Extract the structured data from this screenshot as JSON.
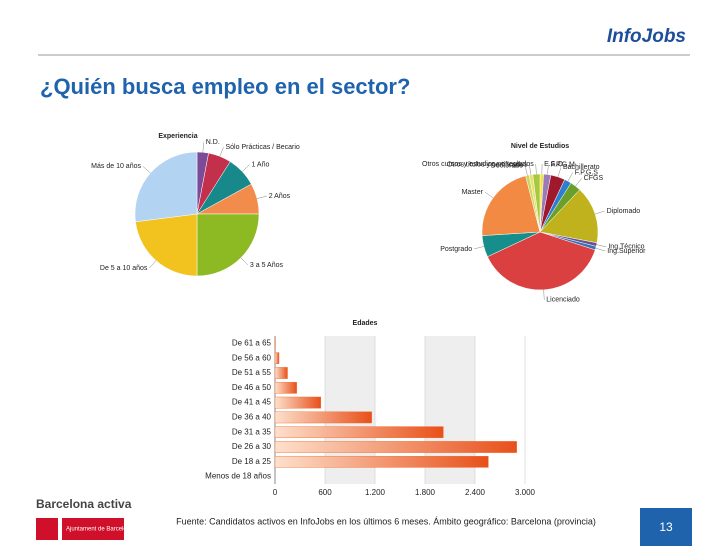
{
  "slide": {
    "logo": "InfoJobs",
    "title": "¿Quién busca empleo en el sector?",
    "brand": "Barcelona activa",
    "council": "Ajuntament de Barcelona",
    "footer": "Fuente:  Candidatos activos en InfoJobs en los últimos 6 meses.  Ámbito geográfico: Barcelona (provincia)",
    "page": "13"
  },
  "chart_data": [
    {
      "type": "pie",
      "title": "Experiencia",
      "categories": [
        "N.D.",
        "Sólo Prácticas / Becario",
        "1 Año",
        "2 Años",
        "3 a 5 Años",
        "De 5 a 10 años",
        "Más de 10 años"
      ],
      "values": [
        3,
        6,
        8,
        8,
        25,
        23,
        27
      ],
      "colors": [
        "#7b4a99",
        "#c2304b",
        "#17898a",
        "#f28c4c",
        "#8dba22",
        "#f2c21f",
        "#b3d3f2"
      ]
    },
    {
      "type": "pie",
      "title": "Nivel de Estudios",
      "categories": [
        "E.S.O",
        "F.P.G.M",
        "Bachillerato",
        "F.P.G.S",
        "CFGS",
        "Diplomado",
        "Ing.Técnico",
        "Ing.Superior",
        "Licenciado",
        "Postgrado",
        "Master",
        "Doctorado",
        "Otros títulos y certificados",
        "Otros cursos y estudios no reglados"
      ],
      "values": [
        1,
        2,
        4,
        2,
        3,
        16,
        1,
        1,
        38,
        6,
        22,
        1,
        1,
        2
      ],
      "colors": [
        "#f2e23a",
        "#9a7ab8",
        "#a0182c",
        "#2f7fd0",
        "#6aa02a",
        "#bfb21c",
        "#6a4f9a",
        "#3a6fb0",
        "#d9403f",
        "#168e8c",
        "#f28a44",
        "#c8d85a",
        "#e8e070",
        "#a8c840"
      ]
    },
    {
      "type": "hbar",
      "title": "Edades",
      "categories": [
        "De 61 a 65",
        "De 56 a 60",
        "De 51 a 55",
        "De 46 a 50",
        "De 41 a 45",
        "De 36 a 40",
        "De 31 a 35",
        "De 26 a 30",
        "De 18 a 25",
        "Menos de 18 años"
      ],
      "values": [
        5,
        48,
        150,
        260,
        550,
        1160,
        2020,
        2900,
        2560,
        0
      ],
      "color": "#f06a2a",
      "xlim": [
        0,
        3000
      ],
      "xticks": [
        0,
        600,
        {
          "value": 1200,
          "label": "1.200"
        },
        {
          "value": 1800,
          "label": "1.800"
        },
        {
          "value": 2400,
          "label": "2.400"
        },
        {
          "value": 3000,
          "label": "3.000"
        }
      ],
      "grid": true
    }
  ]
}
